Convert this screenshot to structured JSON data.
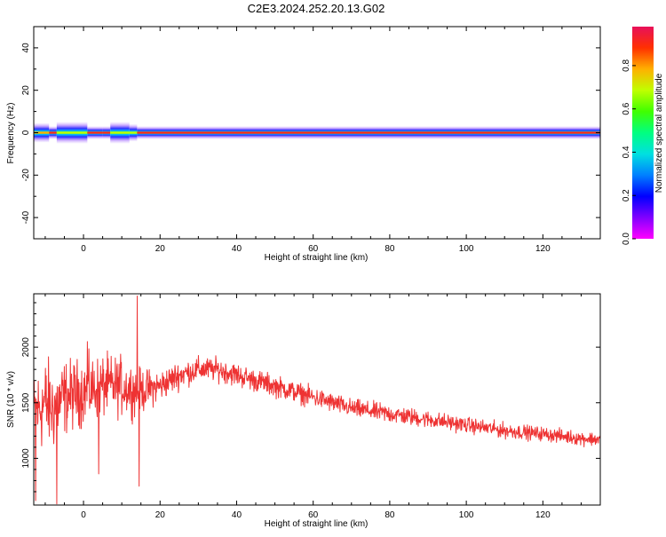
{
  "title": "C2E3.2024.252.20.13.G02",
  "colorbar": {
    "label": "Normalized spectral amplitude",
    "ticks": [
      "0.0",
      "0.2",
      "0.4",
      "0.6",
      "0.8"
    ],
    "range": [
      0.0,
      0.98
    ]
  },
  "chart_data": [
    {
      "type": "heatmap",
      "xlabel": "Height of straight line (km)",
      "ylabel": "Frequency (Hz)",
      "xlim": [
        -13,
        135
      ],
      "ylim": [
        -50,
        50
      ],
      "xticks": [
        0,
        20,
        40,
        60,
        80,
        100,
        120
      ],
      "yticks": [
        -40,
        -20,
        0,
        20,
        40
      ],
      "grid": false,
      "band": {
        "center_frequency": 0,
        "segments": [
          {
            "x": [
              -13,
              -9
            ],
            "half_width": 3,
            "peak": 0.85
          },
          {
            "x": [
              -9,
              -7
            ],
            "half_width": 1.5,
            "peak": 0.95
          },
          {
            "x": [
              -7,
              1
            ],
            "half_width": 3.5,
            "peak": 0.6
          },
          {
            "x": [
              1,
              5
            ],
            "half_width": 1.5,
            "peak": 0.95
          },
          {
            "x": [
              5,
              7
            ],
            "half_width": 1.5,
            "peak": 0.95
          },
          {
            "x": [
              7,
              12
            ],
            "half_width": 3.5,
            "peak": 0.55
          },
          {
            "x": [
              12,
              14
            ],
            "half_width": 2.5,
            "peak": 0.7
          },
          {
            "x": [
              14,
              135
            ],
            "half_width": 1.5,
            "peak": 0.98
          }
        ]
      }
    },
    {
      "type": "line",
      "xlabel": "Height of straight line (km)",
      "ylabel": "SNR (10 * v/v)",
      "xlim": [
        -13,
        135
      ],
      "ylim": [
        580,
        2480
      ],
      "xticks": [
        0,
        20,
        40,
        60,
        80,
        100,
        120
      ],
      "yticks": [
        1000,
        1500,
        2000
      ],
      "grid": false,
      "series": [
        {
          "color": "#ee3333",
          "trend_x": [
            -13,
            -10,
            -8,
            -5,
            0,
            5,
            10,
            14,
            20,
            25,
            30,
            35,
            40,
            50,
            60,
            70,
            80,
            90,
            100,
            110,
            120,
            130,
            135
          ],
          "trend_y": [
            1400,
            1500,
            1450,
            1550,
            1600,
            1650,
            1650,
            1600,
            1650,
            1750,
            1800,
            1800,
            1750,
            1650,
            1550,
            1450,
            1400,
            1350,
            1300,
            1250,
            1220,
            1180,
            1170
          ],
          "noise_amplitude": [
            520,
            600,
            560,
            480,
            420,
            400,
            380,
            300,
            200,
            180,
            160,
            150,
            150,
            140,
            130,
            120,
            120,
            110,
            100,
            100,
            90,
            90,
            90
          ],
          "spikes": [
            {
              "x": -12.5,
              "y": 620
            },
            {
              "x": -7,
              "y": 590
            },
            {
              "x": 14,
              "y": 2460
            },
            {
              "x": 14.5,
              "y": 750
            },
            {
              "x": 4,
              "y": 860
            },
            {
              "x": 1,
              "y": 2050
            }
          ]
        }
      ]
    }
  ]
}
